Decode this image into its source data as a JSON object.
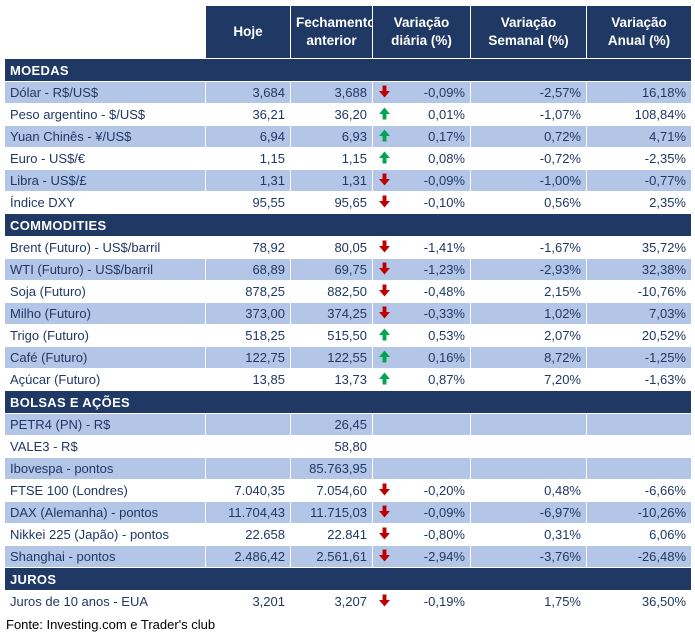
{
  "chart_data": {
    "type": "table",
    "columns": [
      "",
      "Hoje",
      "Fechamento anterior",
      "Variação diária (%)",
      "Variação Semanal (%)",
      "Variação Anual (%)"
    ],
    "sections": [
      {
        "title": "MOEDAS",
        "rows": [
          {
            "label": "Dólar - R$/US$",
            "hoje": "3,684",
            "fechamento_anterior": "3,688",
            "arrow": "down",
            "variacao_diaria": "-0,09%",
            "variacao_semanal": "-2,57%",
            "variacao_anual": "16,18%"
          },
          {
            "label": "Peso argentino - $/US$",
            "hoje": "36,21",
            "fechamento_anterior": "36,20",
            "arrow": "up",
            "variacao_diaria": "0,01%",
            "variacao_semanal": "-1,07%",
            "variacao_anual": "108,84%"
          },
          {
            "label": "Yuan Chinês - ¥/US$",
            "hoje": "6,94",
            "fechamento_anterior": "6,93",
            "arrow": "up",
            "variacao_diaria": "0,17%",
            "variacao_semanal": "0,72%",
            "variacao_anual": "4,71%"
          },
          {
            "label": "Euro - US$/€",
            "hoje": "1,15",
            "fechamento_anterior": "1,15",
            "arrow": "up",
            "variacao_diaria": "0,08%",
            "variacao_semanal": "-0,72%",
            "variacao_anual": "-2,35%"
          },
          {
            "label": "Libra - US$/£",
            "hoje": "1,31",
            "fechamento_anterior": "1,31",
            "arrow": "down",
            "variacao_diaria": "-0,09%",
            "variacao_semanal": "-1,00%",
            "variacao_anual": "-0,77%"
          },
          {
            "label": "Índice DXY",
            "hoje": "95,55",
            "fechamento_anterior": "95,65",
            "arrow": "down",
            "variacao_diaria": "-0,10%",
            "variacao_semanal": "0,56%",
            "variacao_anual": "2,35%"
          }
        ]
      },
      {
        "title": "COMMODITIES",
        "rows": [
          {
            "label": "Brent (Futuro) - US$/barril",
            "hoje": "78,92",
            "fechamento_anterior": "80,05",
            "arrow": "down",
            "variacao_diaria": "-1,41%",
            "variacao_semanal": "-1,67%",
            "variacao_anual": "35,72%"
          },
          {
            "label": "WTI (Futuro) - US$/barril",
            "hoje": "68,89",
            "fechamento_anterior": "69,75",
            "arrow": "down",
            "variacao_diaria": "-1,23%",
            "variacao_semanal": "-2,93%",
            "variacao_anual": "32,38%"
          },
          {
            "label": "Soja (Futuro)",
            "hoje": "878,25",
            "fechamento_anterior": "882,50",
            "arrow": "down",
            "variacao_diaria": "-0,48%",
            "variacao_semanal": "2,15%",
            "variacao_anual": "-10,76%"
          },
          {
            "label": "Milho (Futuro)",
            "hoje": "373,00",
            "fechamento_anterior": "374,25",
            "arrow": "down",
            "variacao_diaria": "-0,33%",
            "variacao_semanal": "1,02%",
            "variacao_anual": "7,03%"
          },
          {
            "label": "Trigo (Futuro)",
            "hoje": "518,25",
            "fechamento_anterior": "515,50",
            "arrow": "up",
            "variacao_diaria": "0,53%",
            "variacao_semanal": "2,07%",
            "variacao_anual": "20,52%"
          },
          {
            "label": "Café (Futuro)",
            "hoje": "122,75",
            "fechamento_anterior": "122,55",
            "arrow": "up",
            "variacao_diaria": "0,16%",
            "variacao_semanal": "8,72%",
            "variacao_anual": "-1,25%"
          },
          {
            "label": "Açúcar (Futuro)",
            "hoje": "13,85",
            "fechamento_anterior": "13,73",
            "arrow": "up",
            "variacao_diaria": "0,87%",
            "variacao_semanal": "7,20%",
            "variacao_anual": "-1,63%"
          }
        ]
      },
      {
        "title": "BOLSAS E AÇÕES",
        "rows": [
          {
            "label": "PETR4 (PN) - R$",
            "hoje": "",
            "fechamento_anterior": "26,45",
            "arrow": "",
            "variacao_diaria": "",
            "variacao_semanal": "",
            "variacao_anual": ""
          },
          {
            "label": "VALE3 - R$",
            "hoje": "",
            "fechamento_anterior": "58,80",
            "arrow": "",
            "variacao_diaria": "",
            "variacao_semanal": "",
            "variacao_anual": ""
          },
          {
            "label": "Ibovespa - pontos",
            "hoje": "",
            "fechamento_anterior": "85.763,95",
            "arrow": "",
            "variacao_diaria": "",
            "variacao_semanal": "",
            "variacao_anual": ""
          },
          {
            "label": "FTSE 100 (Londres)",
            "hoje": "7.040,35",
            "fechamento_anterior": "7.054,60",
            "arrow": "down",
            "variacao_diaria": "-0,20%",
            "variacao_semanal": "0,48%",
            "variacao_anual": "-6,66%"
          },
          {
            "label": "DAX (Alemanha) - pontos",
            "hoje": "11.704,43",
            "fechamento_anterior": "11.715,03",
            "arrow": "down",
            "variacao_diaria": "-0,09%",
            "variacao_semanal": "-6,97%",
            "variacao_anual": "-10,26%"
          },
          {
            "label": "Nikkei 225 (Japão) - pontos",
            "hoje": "22.658",
            "fechamento_anterior": "22.841",
            "arrow": "down",
            "variacao_diaria": "-0,80%",
            "variacao_semanal": "0,31%",
            "variacao_anual": "6,06%"
          },
          {
            "label": "Shanghai - pontos",
            "hoje": "2.486,42",
            "fechamento_anterior": "2.561,61",
            "arrow": "down",
            "variacao_diaria": "-2,94%",
            "variacao_semanal": "-3,76%",
            "variacao_anual": "-26,48%"
          }
        ]
      },
      {
        "title": "JUROS",
        "rows": [
          {
            "label": "Juros de 10 anos - EUA",
            "hoje": "3,201",
            "fechamento_anterior": "3,207",
            "arrow": "down",
            "variacao_diaria": "-0,19%",
            "variacao_semanal": "1,75%",
            "variacao_anual": "36,50%"
          }
        ]
      }
    ]
  },
  "footer": {
    "text": "Fonte: Investing.com e Trader's club"
  },
  "colors": {
    "header_bg": "#1F3864",
    "section_bg": "#1F3864",
    "shaded_row_bg": "#B4C6E7",
    "text": "#1F3864",
    "up_arrow": "#00A550",
    "down_arrow": "#C00000"
  },
  "icons": {
    "up": "arrow-up-icon",
    "down": "arrow-down-icon"
  }
}
